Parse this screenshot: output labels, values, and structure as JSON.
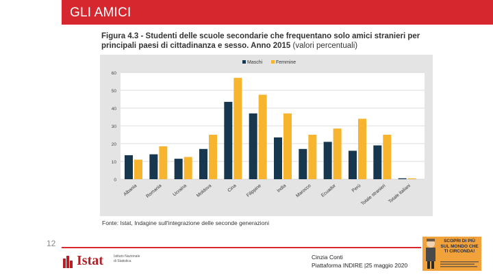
{
  "slide": {
    "title": "GLI AMICI",
    "page_number": "12",
    "presenter_name": "Cinzia Conti",
    "presenter_event": "Piattaforma INDIRE |25 maggio 2020"
  },
  "figure": {
    "title_bold": "Figura 4.3 - Studenti delle scuole secondarie che frequentano solo amici stranieri per principali paesi di cittadinanza e sesso. Anno 2015",
    "title_light": "(valori percentuali)",
    "source": "Fonte: Istat, Indagine sull'integrazione delle seconde generazioni"
  },
  "logo": {
    "wordmark": "Istat",
    "subtitle": "Istituto Nazionale di Statistica"
  },
  "promo": {
    "text": "SCOPRI DI PIÙ SUL MONDO CHE TI CIRCONDA!"
  },
  "colors": {
    "brand_red": "#d6272e",
    "maschi": "#17374f",
    "femmine": "#f7b52f",
    "panel": "#e4e4e4"
  },
  "chart_data": {
    "type": "bar",
    "title": "Studenti delle scuole secondarie che frequentano solo amici stranieri per principali paesi di cittadinanza e sesso. Anno 2015 (valori percentuali)",
    "categories": [
      "Albania",
      "Romania",
      "Ucraina",
      "Moldova",
      "Cina",
      "Filippine",
      "India",
      "Marocco",
      "Ecuador",
      "Perù",
      "Totale stranieri",
      "Totale italiani"
    ],
    "series": [
      {
        "name": "Maschi",
        "color": "#17374f",
        "values": [
          13.5,
          14,
          11.5,
          17,
          43.5,
          37,
          23.5,
          17,
          21,
          16,
          19,
          0.5
        ]
      },
      {
        "name": "Femmine",
        "color": "#f7b52f",
        "values": [
          11,
          18.5,
          12.5,
          25,
          57,
          47.5,
          37,
          25,
          28.5,
          34,
          25,
          0.5
        ]
      }
    ],
    "ylim": [
      0,
      60
    ],
    "yticks": [
      "0",
      "10",
      "20",
      "30",
      "40",
      "50",
      "60"
    ],
    "xlabel": "",
    "ylabel": "",
    "legend": "top-center",
    "grid": true
  }
}
